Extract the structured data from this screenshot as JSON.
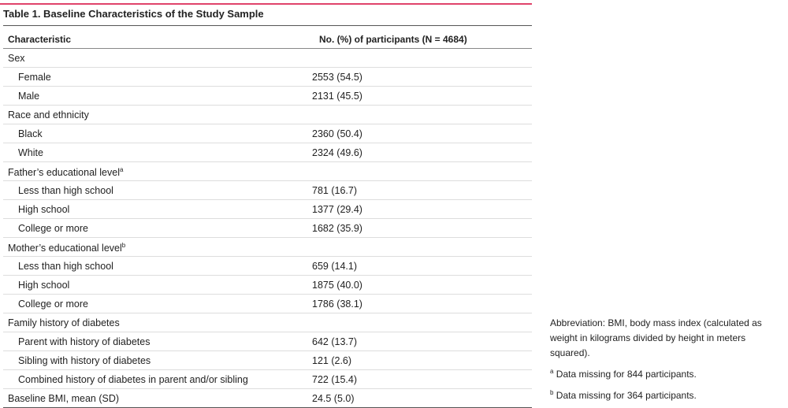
{
  "title": "Table 1. Baseline Characteristics of the Study Sample",
  "table": {
    "columns": [
      "Characteristic",
      "No. (%) of participants (N = 4684)"
    ],
    "groups": [
      {
        "label": "Sex",
        "items": [
          {
            "label": "Female",
            "value": "2553 (54.5)"
          },
          {
            "label": "Male",
            "value": "2131 (45.5)"
          }
        ]
      },
      {
        "label": "Race and ethnicity",
        "items": [
          {
            "label": "Black",
            "value": "2360 (50.4)"
          },
          {
            "label": "White",
            "value": "2324 (49.6)"
          }
        ]
      },
      {
        "label": "Father’s educational level",
        "note": "a",
        "items": [
          {
            "label": "Less than high school",
            "value": "781 (16.7)"
          },
          {
            "label": "High school",
            "value": "1377 (29.4)"
          },
          {
            "label": "College or more",
            "value": "1682 (35.9)"
          }
        ]
      },
      {
        "label": "Mother’s educational level",
        "note": "b",
        "items": [
          {
            "label": "Less than high school",
            "value": "659 (14.1)"
          },
          {
            "label": "High school",
            "value": "1875 (40.0)"
          },
          {
            "label": "College or more",
            "value": "1786 (38.1)"
          }
        ]
      },
      {
        "label": "Family history of diabetes",
        "items": [
          {
            "label": "Parent with history of diabetes",
            "value": "642 (13.7)"
          },
          {
            "label": "Sibling with history of diabetes",
            "value": "121 (2.6)"
          },
          {
            "label": "Combined history of diabetes in parent and/or sibling",
            "value": "722 (15.4)"
          }
        ]
      }
    ],
    "rows": [
      {
        "label": "Baseline BMI, mean (SD)",
        "value": "24.5 (5.0)"
      }
    ]
  },
  "abbreviation": "Abbreviation: BMI, body mass index (calculated as weight in kilograms divided by height in meters squared).",
  "footnotes": [
    {
      "mark": "a",
      "text": "Data missing for 844 participants."
    },
    {
      "mark": "b",
      "text": "Data missing for 364 participants."
    }
  ]
}
